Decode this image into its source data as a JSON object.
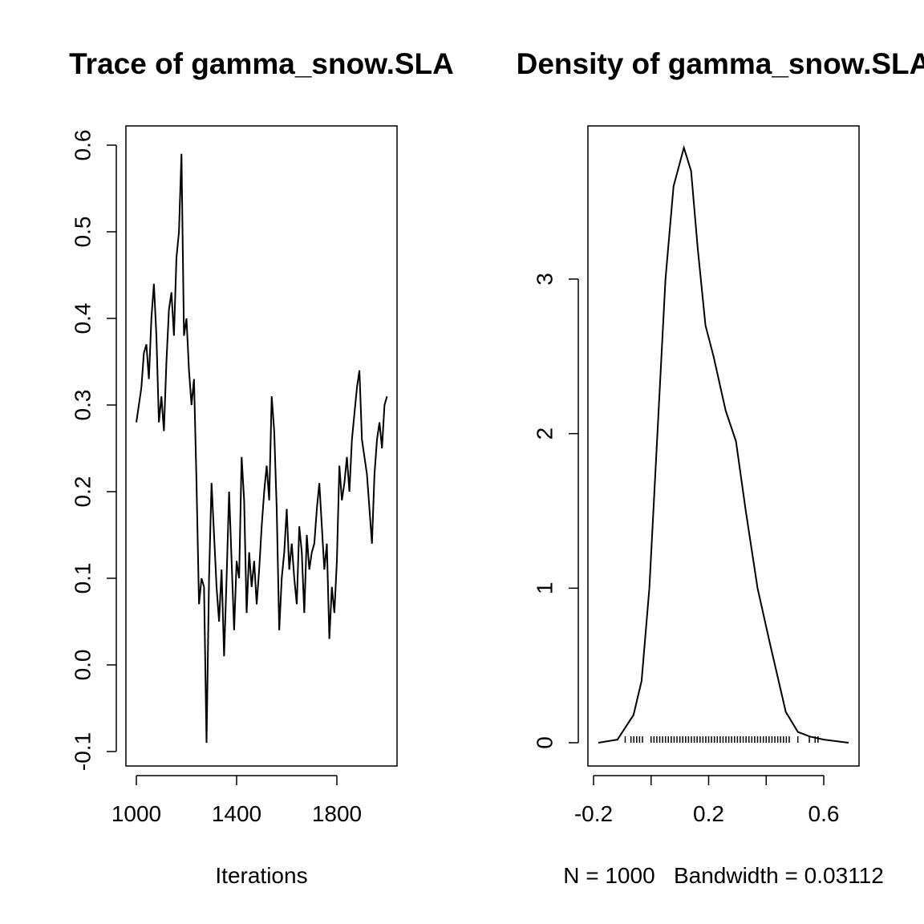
{
  "chart_data": [
    {
      "type": "line",
      "title": "Trace of gamma_snow.SLA",
      "xlabel": "Iterations",
      "x": [
        1000,
        1010,
        1020,
        1030,
        1040,
        1050,
        1060,
        1070,
        1080,
        1090,
        1100,
        1110,
        1120,
        1130,
        1140,
        1150,
        1160,
        1170,
        1180,
        1190,
        1200,
        1210,
        1220,
        1230,
        1240,
        1250,
        1260,
        1270,
        1280,
        1290,
        1300,
        1310,
        1320,
        1330,
        1340,
        1350,
        1360,
        1370,
        1380,
        1390,
        1400,
        1410,
        1420,
        1430,
        1440,
        1450,
        1460,
        1470,
        1480,
        1490,
        1500,
        1510,
        1520,
        1530,
        1540,
        1550,
        1560,
        1570,
        1580,
        1590,
        1600,
        1610,
        1620,
        1630,
        1640,
        1650,
        1660,
        1670,
        1680,
        1690,
        1700,
        1710,
        1720,
        1730,
        1740,
        1750,
        1760,
        1770,
        1780,
        1790,
        1800,
        1810,
        1820,
        1830,
        1840,
        1850,
        1860,
        1870,
        1880,
        1890,
        1900,
        1910,
        1920,
        1930,
        1940,
        1950,
        1960,
        1970,
        1980,
        1990,
        2000
      ],
      "values": [
        0.28,
        0.3,
        0.32,
        0.36,
        0.37,
        0.33,
        0.4,
        0.44,
        0.38,
        0.28,
        0.31,
        0.27,
        0.35,
        0.41,
        0.43,
        0.38,
        0.47,
        0.5,
        0.59,
        0.38,
        0.4,
        0.34,
        0.3,
        0.33,
        0.21,
        0.07,
        0.1,
        0.09,
        -0.09,
        0.1,
        0.21,
        0.15,
        0.09,
        0.05,
        0.11,
        0.01,
        0.1,
        0.2,
        0.12,
        0.04,
        0.12,
        0.1,
        0.24,
        0.19,
        0.06,
        0.13,
        0.09,
        0.12,
        0.07,
        0.11,
        0.16,
        0.2,
        0.23,
        0.19,
        0.31,
        0.27,
        0.18,
        0.04,
        0.1,
        0.13,
        0.18,
        0.11,
        0.14,
        0.1,
        0.07,
        0.16,
        0.13,
        0.06,
        0.15,
        0.11,
        0.13,
        0.14,
        0.18,
        0.21,
        0.16,
        0.11,
        0.14,
        0.03,
        0.09,
        0.06,
        0.12,
        0.23,
        0.19,
        0.21,
        0.24,
        0.2,
        0.26,
        0.29,
        0.32,
        0.34,
        0.26,
        0.24,
        0.22,
        0.18,
        0.14,
        0.22,
        0.26,
        0.28,
        0.25,
        0.3,
        0.31
      ],
      "color": "#000000",
      "xlim": [
        958.4,
        2040
      ],
      "xticks": [
        1000,
        1400,
        1800
      ],
      "ylim": [
        -0.1167,
        0.6222
      ],
      "yticks": [
        -0.1,
        {
          "value": 0,
          "label": "0.0"
        },
        0.1,
        0.2,
        0.3,
        0.4,
        0.5,
        0.6
      ]
    },
    {
      "type": "density",
      "title": "Density of gamma_snow.SLA",
      "xlabel": "N = 1000   Bandwidth = 0.03112",
      "x": [
        -0.183,
        -0.117,
        -0.061,
        -0.033,
        -0.006,
        0.022,
        0.05,
        0.078,
        0.114,
        0.139,
        0.162,
        0.189,
        0.217,
        0.259,
        0.295,
        0.329,
        0.37,
        0.412,
        0.468,
        0.51,
        0.552,
        0.6,
        0.686
      ],
      "values": [
        0,
        0.02,
        0.18,
        0.4,
        1.0,
        2.0,
        3.0,
        3.6,
        3.85,
        3.7,
        3.2,
        2.7,
        2.5,
        2.15,
        1.95,
        1.5,
        1.0,
        0.65,
        0.2,
        0.07,
        0.04,
        0.02,
        0
      ],
      "rug": [
        -0.09,
        -0.07,
        -0.06,
        -0.05,
        -0.04,
        -0.03,
        0.0,
        0.01,
        0.02,
        0.03,
        0.04,
        0.05,
        0.06,
        0.07,
        0.08,
        0.09,
        0.1,
        0.11,
        0.12,
        0.13,
        0.14,
        0.15,
        0.16,
        0.17,
        0.18,
        0.19,
        0.2,
        0.21,
        0.22,
        0.23,
        0.24,
        0.25,
        0.26,
        0.27,
        0.28,
        0.29,
        0.3,
        0.31,
        0.32,
        0.33,
        0.34,
        0.35,
        0.36,
        0.37,
        0.38,
        0.39,
        0.4,
        0.41,
        0.42,
        0.43,
        0.44,
        0.45,
        0.46,
        0.47,
        0.48,
        0.51,
        0.55,
        0.57,
        0.58
      ],
      "color": "#000000",
      "xlim": [
        -0.2195,
        0.7226
      ],
      "xticks": [
        -0.2,
        {
          "value": 0,
          "label": null
        },
        0.2,
        {
          "value": 0.4,
          "label": null
        },
        0.6
      ],
      "ylim": [
        -0.1505,
        3.991
      ],
      "yticks": [
        0,
        1,
        2,
        3
      ]
    }
  ]
}
